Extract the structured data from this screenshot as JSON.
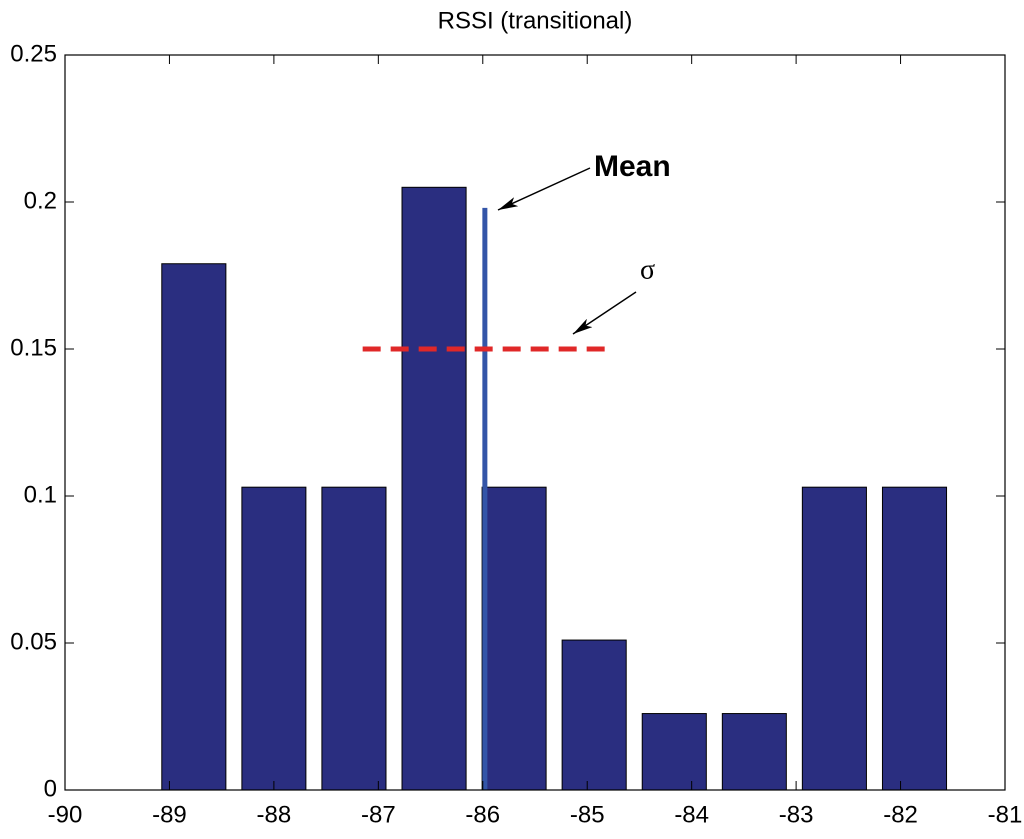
{
  "chart_data": {
    "type": "histogram",
    "title": "RSSI (transitional)",
    "bins": [
      -89.15,
      -88.383,
      -87.617,
      -86.85,
      -86.083,
      -85.317,
      -84.55,
      -83.783,
      -83.017,
      -82.25,
      -81.483
    ],
    "values": [
      0.179,
      0.103,
      0.103,
      0.205,
      0.103,
      0.051,
      0.026,
      0.026,
      0.103,
      0.103
    ],
    "color": "#2a2e80",
    "xlim": [
      -90,
      -81
    ],
    "xticks": [
      -90,
      -89,
      -88,
      -87,
      -86,
      -85,
      -84,
      -83,
      -82,
      -81
    ],
    "ylim": [
      0,
      0.25
    ],
    "yticks": [
      0,
      0.05,
      0.1,
      0.15,
      0.2,
      0.25
    ],
    "mean": {
      "label": "Mean",
      "x": -85.98,
      "height": 0.198,
      "color": "#3355a8"
    },
    "sigma": {
      "label": "σ",
      "y": 0.15,
      "x": [
        -87.15,
        -84.81
      ],
      "color": "#e02828"
    }
  }
}
